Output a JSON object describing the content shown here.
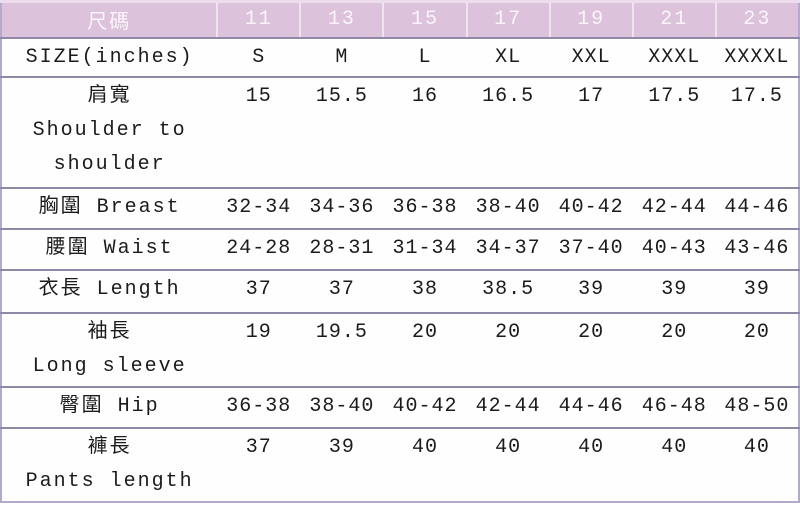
{
  "colors": {
    "header_bg": "#dcc2da",
    "header_text": "#fbf4fb",
    "row_line": "#8f88a6",
    "outer_border": "#b5a9cc",
    "body_text": "#1b1b1b"
  },
  "table": {
    "header": {
      "label": "尺碼",
      "sizes": [
        "11",
        "13",
        "15",
        "17",
        "19",
        "21",
        "23"
      ]
    },
    "rows": [
      {
        "label_lines": [
          "SIZE(inches)"
        ],
        "values": [
          "S",
          "M",
          "L",
          "XL",
          "XXL",
          "XXXL",
          "XXXXL"
        ]
      },
      {
        "label_lines": [
          "肩寬",
          "Shoulder to",
          "shoulder"
        ],
        "values": [
          "15",
          "15.5",
          "16",
          "16.5",
          "17",
          "17.5",
          "17.5"
        ]
      },
      {
        "label_lines": [
          "胸圍 Breast"
        ],
        "values": [
          "32-34",
          "34-36",
          "36-38",
          "38-40",
          "40-42",
          "42-44",
          "44-46"
        ]
      },
      {
        "label_lines": [
          "腰圍 Waist"
        ],
        "values": [
          "24-28",
          "28-31",
          "31-34",
          "34-37",
          "37-40",
          "40-43",
          "43-46"
        ]
      },
      {
        "label_lines": [
          "衣長 Length"
        ],
        "values": [
          "37",
          "37",
          "38",
          "38.5",
          "39",
          "39",
          "39"
        ]
      },
      {
        "label_lines": [
          "袖長",
          "Long sleeve"
        ],
        "values": [
          "19",
          "19.5",
          "20",
          "20",
          "20",
          "20",
          "20"
        ]
      },
      {
        "label_lines": [
          "臀圍 Hip"
        ],
        "values": [
          "36-38",
          "38-40",
          "40-42",
          "42-44",
          "44-46",
          "46-48",
          "48-50"
        ]
      },
      {
        "label_lines": [
          "褲長",
          "Pants length"
        ],
        "values": [
          "37",
          "39",
          "40",
          "40",
          "40",
          "40",
          "40"
        ]
      }
    ]
  },
  "chart_data": {
    "type": "table",
    "title": "Clothing size chart (inches)",
    "columns": [
      "尺碼",
      "11",
      "13",
      "15",
      "17",
      "19",
      "21",
      "23"
    ],
    "rows": [
      [
        "SIZE(inches)",
        "S",
        "M",
        "L",
        "XL",
        "XXL",
        "XXXL",
        "XXXXL"
      ],
      [
        "肩寬 Shoulder to shoulder",
        "15",
        "15.5",
        "16",
        "16.5",
        "17",
        "17.5",
        "17.5"
      ],
      [
        "胸圍 Breast",
        "32-34",
        "34-36",
        "36-38",
        "38-40",
        "40-42",
        "42-44",
        "44-46"
      ],
      [
        "腰圍 Waist",
        "24-28",
        "28-31",
        "31-34",
        "34-37",
        "37-40",
        "40-43",
        "43-46"
      ],
      [
        "衣長 Length",
        "37",
        "37",
        "38",
        "38.5",
        "39",
        "39",
        "39"
      ],
      [
        "袖長 Long sleeve",
        "19",
        "19.5",
        "20",
        "20",
        "20",
        "20",
        "20"
      ],
      [
        "臀圍 Hip",
        "36-38",
        "38-40",
        "40-42",
        "42-44",
        "44-46",
        "46-48",
        "48-50"
      ],
      [
        "褲長 Pants length",
        "37",
        "39",
        "40",
        "40",
        "40",
        "40",
        "40"
      ]
    ]
  }
}
